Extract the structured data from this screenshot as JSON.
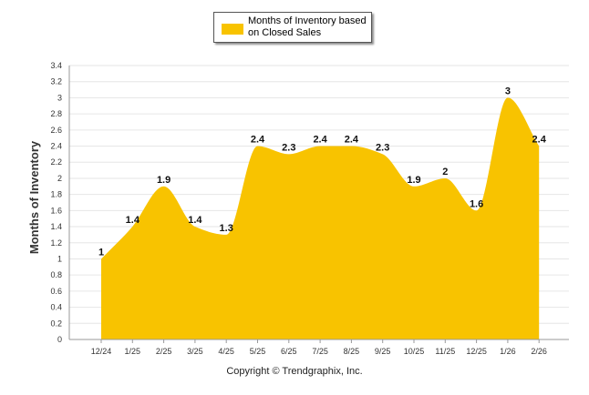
{
  "legend": {
    "label": "Months of Inventory based\non Closed Sales"
  },
  "copyright": "Copyright © Trendgraphix, Inc.",
  "colors": {
    "area": "#F8C300",
    "grid": "#e6e6e6",
    "axis": "#999999"
  },
  "chart_data": {
    "type": "area",
    "title": "",
    "xlabel": "",
    "ylabel": "Months of Inventory",
    "categories": [
      "12/24",
      "1/25",
      "2/25",
      "3/25",
      "4/25",
      "5/25",
      "6/25",
      "7/25",
      "8/25",
      "9/25",
      "10/25",
      "11/25",
      "12/25",
      "1/26",
      "2/26"
    ],
    "series": [
      {
        "name": "Months of Inventory based on Closed Sales",
        "values": [
          1,
          1.4,
          1.9,
          1.4,
          1.3,
          2.4,
          2.3,
          2.4,
          2.4,
          2.3,
          1.9,
          2,
          1.6,
          3,
          2.4
        ]
      }
    ],
    "data_labels": [
      "1",
      "1.4",
      "1.9",
      "1.4",
      "1.3",
      "2.4",
      "2.3",
      "2.4",
      "2.4",
      "2.3",
      "1.9",
      "2",
      "1.6",
      "3",
      "2.4"
    ],
    "y_ticks": [
      "0",
      "0.2",
      "0.4",
      "0.6",
      "0.8",
      "1",
      "1.2",
      "1.4",
      "1.6",
      "1.8",
      "2",
      "2.2",
      "2.4",
      "2.6",
      "2.8",
      "3",
      "3.2",
      "3.4"
    ],
    "ylim": [
      0,
      3.4
    ],
    "grid": true,
    "legend_position": "top-center"
  }
}
